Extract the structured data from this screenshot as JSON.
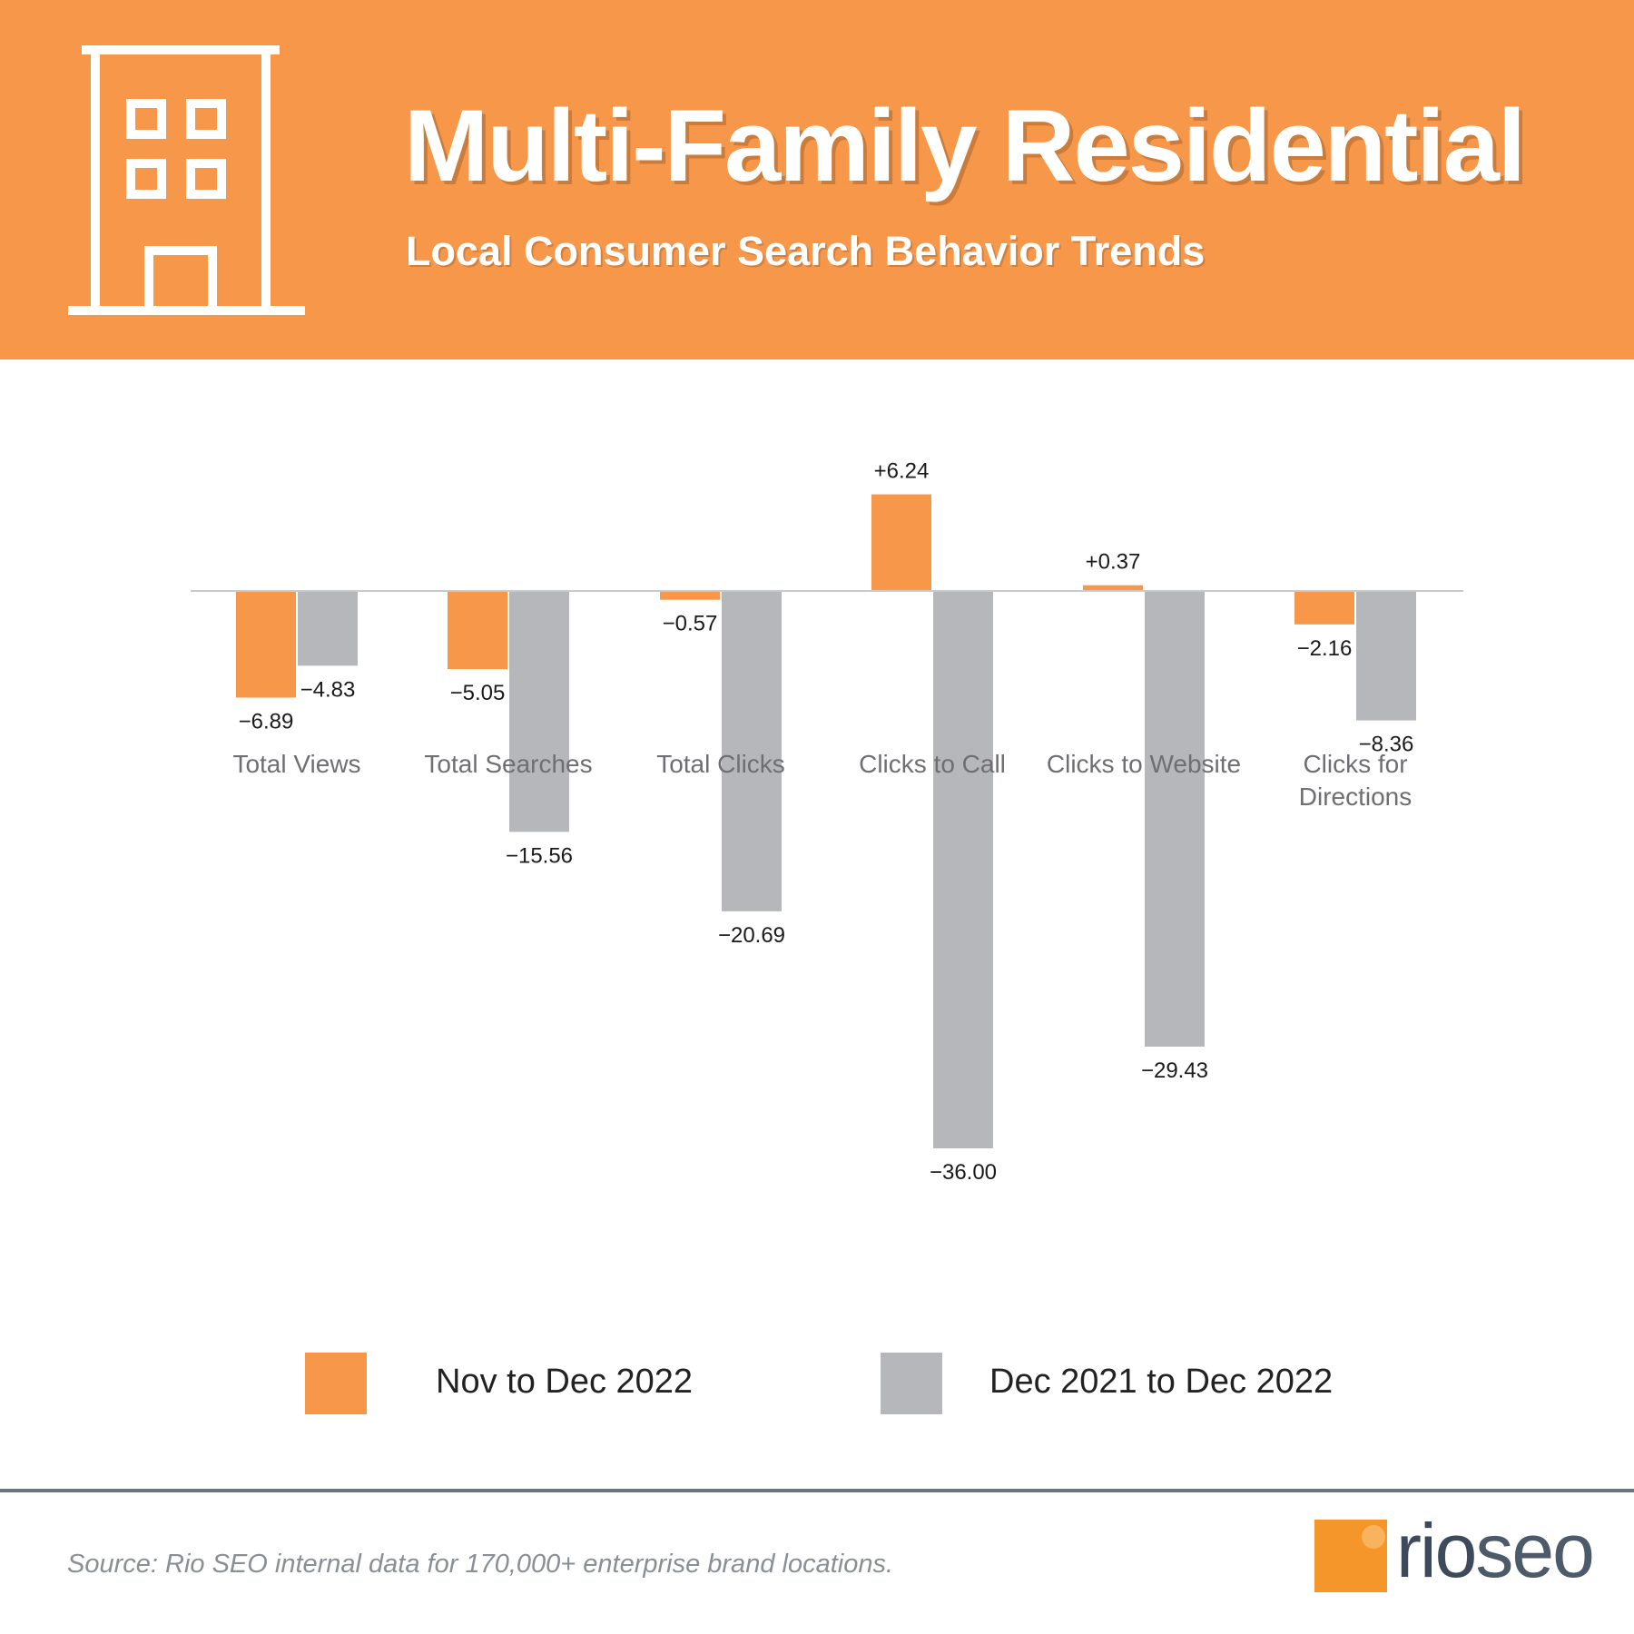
{
  "header": {
    "title": "Multi-Family Residential",
    "subtitle": "Local Consumer Search Behavior Trends"
  },
  "colors": {
    "header_bg": "#F7974A",
    "series_1": "#F7974A",
    "series_2": "#B6B7BB",
    "zero_line": "#C9CACE"
  },
  "chart_data": {
    "type": "bar",
    "categories": [
      "Total Views",
      "Total Searches",
      "Total Clicks",
      "Clicks to Call",
      "Clicks to Website",
      "Clicks for\nDirections"
    ],
    "series": [
      {
        "name": "Nov to Dec 2022",
        "values": [
          -6.89,
          -5.05,
          -0.57,
          6.24,
          0.37,
          -2.16
        ],
        "labels": [
          "−6.89",
          "−5.05",
          "−0.57",
          "+6.24",
          "+0.37",
          "−2.16"
        ]
      },
      {
        "name": "Dec 2021 to Dec 2022",
        "values": [
          -4.83,
          -15.56,
          -20.69,
          -36.0,
          -29.43,
          -8.36
        ],
        "labels": [
          "−4.83",
          "−15.56",
          "−20.69",
          "−36.00",
          "−29.43",
          "−8.36"
        ]
      }
    ],
    "ylim": [
      -36,
      6.24
    ],
    "grid": false,
    "legend": "bottom"
  },
  "legend": [
    {
      "label": "Nov to Dec 2022"
    },
    {
      "label": "Dec 2021 to Dec 2022"
    }
  ],
  "footer": {
    "source": "Source: Rio SEO internal data for 170,000+ enterprise brand locations.",
    "logo_rio": "rio",
    "logo_seo": "seo"
  }
}
